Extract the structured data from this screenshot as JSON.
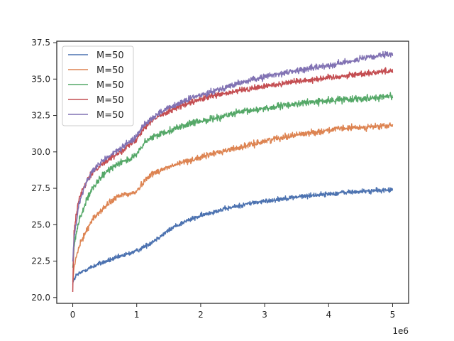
{
  "chart_data": {
    "type": "line",
    "title": "",
    "xlabel": "",
    "ylabel": "",
    "x_offset_label": "1e6",
    "xlim": [
      -0.25,
      5.25
    ],
    "ylim": [
      19.6,
      37.6
    ],
    "xticks": [
      0,
      1,
      2,
      3,
      4,
      5
    ],
    "xtick_labels": [
      "0",
      "1",
      "2",
      "3",
      "4",
      "5"
    ],
    "yticks": [
      20.0,
      22.5,
      25.0,
      27.5,
      30.0,
      32.5,
      35.0,
      37.5
    ],
    "ytick_labels": [
      "20.0",
      "22.5",
      "25.0",
      "27.5",
      "30.0",
      "32.5",
      "35.0",
      "37.5"
    ],
    "grid": false,
    "legend_position": "top-left",
    "series": [
      {
        "name": "M=50",
        "color": "#4c72b0",
        "noise": 0.16,
        "x": [
          0,
          0.05,
          0.2,
          0.4,
          0.6,
          0.8,
          1.0,
          1.2,
          1.4,
          1.6,
          1.8,
          2.0,
          2.2,
          2.4,
          2.6,
          2.8,
          3.0,
          3.2,
          3.4,
          3.6,
          3.8,
          4.0,
          4.2,
          4.4,
          4.6,
          4.8,
          5.0
        ],
        "y": [
          21.0,
          21.5,
          21.9,
          22.3,
          22.6,
          22.9,
          23.2,
          23.7,
          24.3,
          24.9,
          25.3,
          25.6,
          25.9,
          26.1,
          26.3,
          26.5,
          26.6,
          26.75,
          26.85,
          26.95,
          27.05,
          27.1,
          27.2,
          27.25,
          27.3,
          27.35,
          27.4
        ]
      },
      {
        "name": "M=50",
        "color": "#dd8452",
        "noise": 0.2,
        "x": [
          0,
          0.02,
          0.05,
          0.1,
          0.2,
          0.3,
          0.4,
          0.5,
          0.6,
          0.7,
          0.8,
          0.9,
          1.0,
          1.1,
          1.2,
          1.4,
          1.6,
          1.8,
          2.0,
          2.2,
          2.4,
          2.6,
          2.8,
          3.0,
          3.2,
          3.4,
          3.6,
          3.8,
          4.0,
          4.2,
          4.4,
          4.6,
          4.8,
          5.0
        ],
        "y": [
          21.0,
          22.0,
          22.7,
          23.5,
          24.5,
          25.3,
          25.8,
          26.2,
          26.6,
          26.9,
          27.1,
          27.1,
          27.3,
          27.9,
          28.4,
          28.8,
          29.1,
          29.4,
          29.6,
          29.9,
          30.1,
          30.3,
          30.5,
          30.75,
          30.95,
          31.1,
          31.25,
          31.35,
          31.5,
          31.6,
          31.65,
          31.7,
          31.75,
          31.8
        ]
      },
      {
        "name": "M=50",
        "color": "#55a868",
        "noise": 0.22,
        "x": [
          0,
          0.02,
          0.05,
          0.1,
          0.2,
          0.3,
          0.4,
          0.5,
          0.6,
          0.7,
          0.8,
          0.9,
          1.0,
          1.1,
          1.2,
          1.4,
          1.6,
          1.8,
          2.0,
          2.2,
          2.4,
          2.6,
          2.8,
          3.0,
          3.2,
          3.4,
          3.6,
          3.8,
          4.0,
          4.2,
          4.4,
          4.6,
          4.8,
          5.0
        ],
        "y": [
          22.0,
          23.5,
          24.3,
          25.3,
          26.5,
          27.4,
          28.0,
          28.5,
          28.9,
          29.2,
          29.4,
          29.5,
          29.8,
          30.5,
          30.9,
          31.3,
          31.6,
          31.9,
          32.1,
          32.3,
          32.5,
          32.7,
          32.85,
          33.0,
          33.1,
          33.25,
          33.35,
          33.45,
          33.5,
          33.6,
          33.65,
          33.7,
          33.75,
          33.85
        ]
      },
      {
        "name": "M=50",
        "color": "#c44e52",
        "noise": 0.2,
        "x": [
          0,
          0.02,
          0.05,
          0.1,
          0.2,
          0.3,
          0.4,
          0.5,
          0.6,
          0.7,
          0.8,
          0.9,
          1.0,
          1.1,
          1.2,
          1.4,
          1.6,
          1.8,
          2.0,
          2.2,
          2.4,
          2.6,
          2.8,
          3.0,
          3.2,
          3.4,
          3.6,
          3.8,
          4.0,
          4.2,
          4.4,
          4.6,
          4.8,
          5.0
        ],
        "y": [
          20.5,
          24.5,
          25.5,
          26.8,
          27.8,
          28.5,
          29.0,
          29.3,
          29.6,
          29.9,
          30.2,
          30.5,
          30.9,
          31.6,
          32.0,
          32.6,
          33.0,
          33.3,
          33.6,
          33.85,
          34.0,
          34.2,
          34.35,
          34.5,
          34.65,
          34.8,
          34.9,
          35.0,
          35.1,
          35.2,
          35.3,
          35.4,
          35.5,
          35.6
        ]
      },
      {
        "name": "M=50",
        "color": "#8172b3",
        "noise": 0.2,
        "x": [
          0,
          0.02,
          0.05,
          0.1,
          0.2,
          0.3,
          0.4,
          0.5,
          0.6,
          0.7,
          0.8,
          0.9,
          1.0,
          1.1,
          1.2,
          1.4,
          1.6,
          1.8,
          2.0,
          2.2,
          2.4,
          2.6,
          2.8,
          3.0,
          3.2,
          3.4,
          3.6,
          3.8,
          4.0,
          4.2,
          4.4,
          4.6,
          4.8,
          5.0
        ],
        "y": [
          22.5,
          24.0,
          25.0,
          26.5,
          27.8,
          28.6,
          29.1,
          29.5,
          29.8,
          30.1,
          30.4,
          30.7,
          31.1,
          31.8,
          32.2,
          32.8,
          33.2,
          33.6,
          33.9,
          34.2,
          34.45,
          34.7,
          34.95,
          35.15,
          35.35,
          35.5,
          35.65,
          35.8,
          35.95,
          36.1,
          36.3,
          36.45,
          36.6,
          36.7
        ]
      }
    ]
  }
}
